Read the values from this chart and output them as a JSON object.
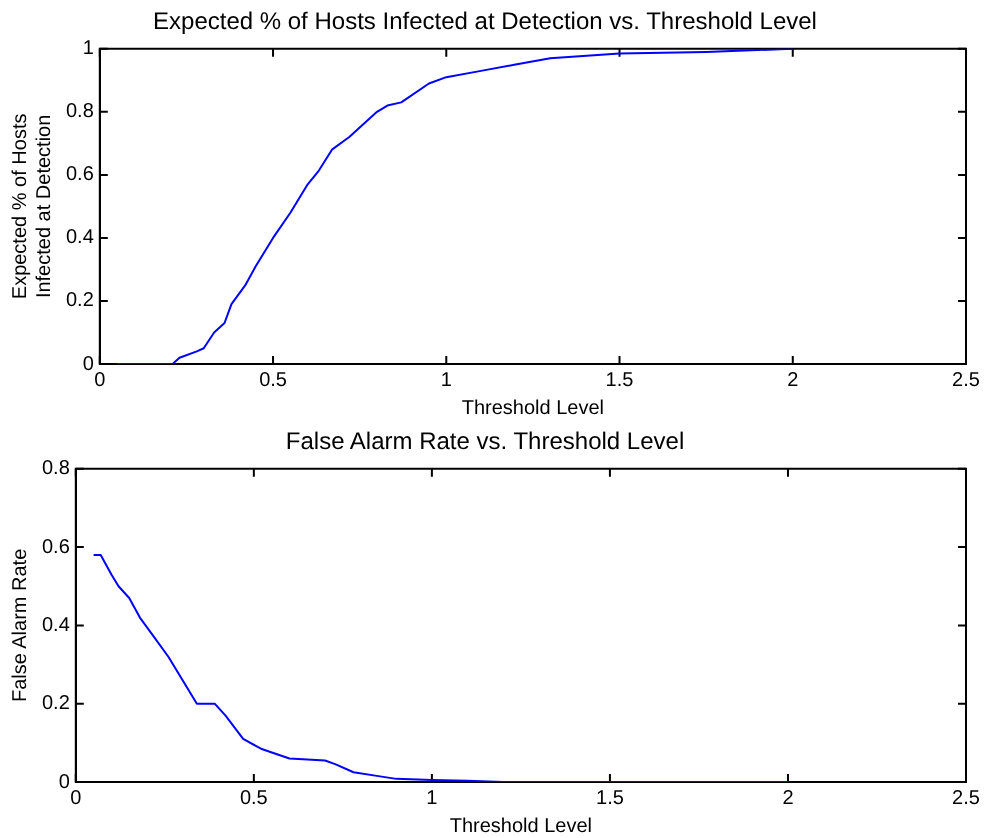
{
  "chart_data": [
    {
      "type": "line",
      "title": "Expected % of Hosts Infected at Detection vs. Threshold Level",
      "xlabel": "Threshold Level",
      "ylabel": "Expected % of Hosts Infected at Detection",
      "xlim": [
        0,
        2.5
      ],
      "xticks": [
        0,
        0.5,
        1,
        1.5,
        2,
        2.5
      ],
      "ylim": [
        0,
        1
      ],
      "yticks": [
        0,
        0.2,
        0.4,
        0.6,
        0.8,
        1
      ],
      "grid": false,
      "legend": false,
      "marker": "none",
      "line_style": "solid",
      "series": [
        {
          "color": "#0000ff",
          "x": [
            0.05,
            0.21,
            0.23,
            0.28,
            0.3,
            0.33,
            0.36,
            0.38,
            0.4,
            0.42,
            0.45,
            0.5,
            0.55,
            0.6,
            0.63,
            0.67,
            0.72,
            0.8,
            0.83,
            0.87,
            0.95,
            1.0,
            1.1,
            1.2,
            1.3,
            1.5,
            1.75,
            2.0
          ],
          "values": [
            0,
            0,
            0.02,
            0.04,
            0.05,
            0.1,
            0.13,
            0.19,
            0.22,
            0.25,
            0.31,
            0.4,
            0.48,
            0.57,
            0.61,
            0.68,
            0.72,
            0.8,
            0.82,
            0.83,
            0.89,
            0.91,
            0.93,
            0.95,
            0.97,
            0.985,
            0.99,
            1.0
          ]
        }
      ]
    },
    {
      "type": "line",
      "title": "False Alarm Rate vs. Threshold Level",
      "xlabel": "Threshold Level",
      "ylabel": "False Alarm Rate",
      "xlim": [
        0,
        2.5
      ],
      "xticks": [
        0,
        0.5,
        1,
        1.5,
        2,
        2.5
      ],
      "ylim": [
        0,
        0.8
      ],
      "yticks": [
        0,
        0.2,
        0.4,
        0.6,
        0.8
      ],
      "grid": false,
      "legend": false,
      "marker": "none",
      "line_style": "solid",
      "series": [
        {
          "color": "#0000ff",
          "x": [
            0.05,
            0.07,
            0.1,
            0.12,
            0.15,
            0.18,
            0.22,
            0.26,
            0.28,
            0.34,
            0.39,
            0.42,
            0.47,
            0.52,
            0.6,
            0.7,
            0.73,
            0.78,
            0.85,
            0.9,
            1.0,
            1.1,
            1.2,
            2.0
          ],
          "values": [
            0.58,
            0.58,
            0.53,
            0.5,
            0.47,
            0.42,
            0.37,
            0.32,
            0.29,
            0.2,
            0.2,
            0.17,
            0.11,
            0.085,
            0.06,
            0.055,
            0.045,
            0.025,
            0.015,
            0.008,
            0.005,
            0.003,
            0,
            0
          ]
        }
      ]
    }
  ]
}
